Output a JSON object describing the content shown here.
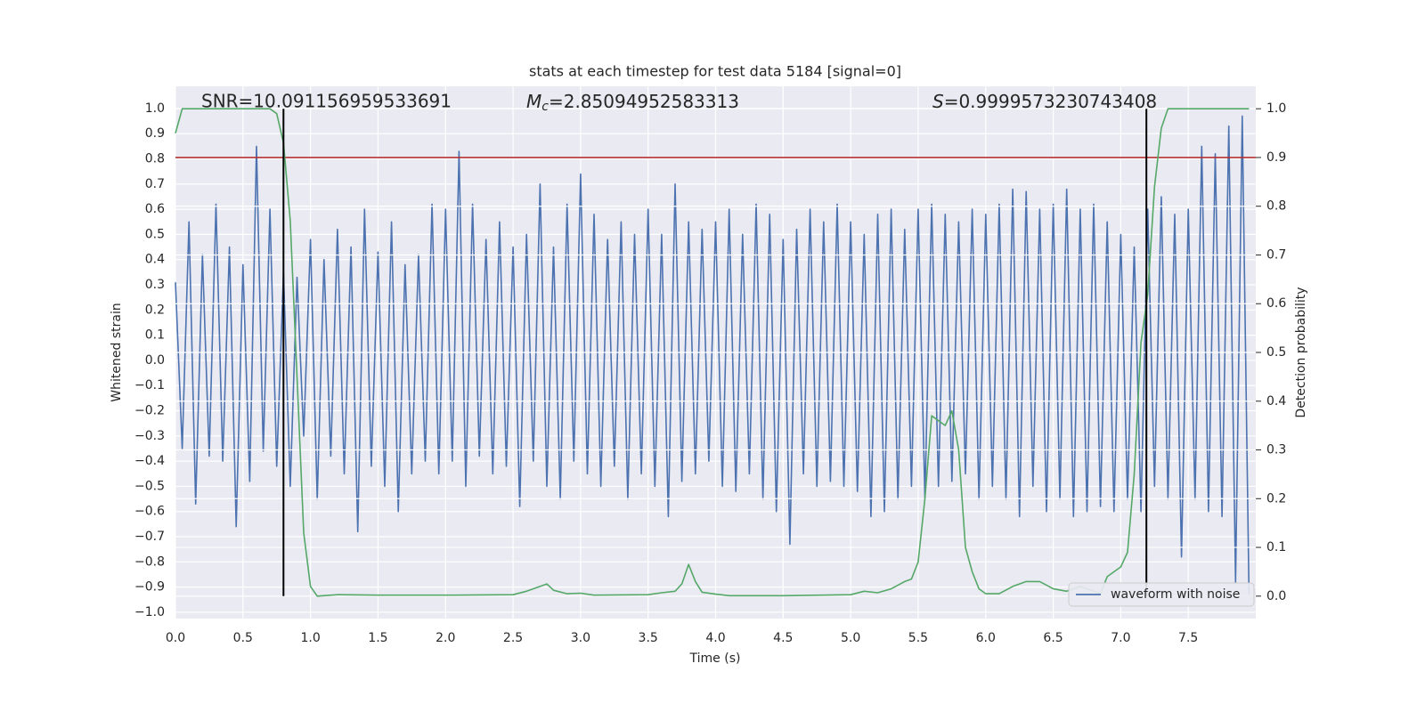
{
  "chart_data": {
    "type": "line",
    "title": "stats at each timestep for test data 5184 [signal=0]",
    "xlabel": "Time (s)",
    "ylabel": "Whitened strain",
    "y2label": "Detection probability",
    "annotations": {
      "snr": "SNR=10.091156959533691",
      "mc": {
        "symbol": "M",
        "subscript": "c",
        "text": "=2.85094952583313"
      },
      "s": {
        "symbol": "S",
        "text": "=0.9999573230743408"
      }
    },
    "xlim": [
      0,
      8.0
    ],
    "ylim": [
      -1.025,
      1.088
    ],
    "y2lim": [
      -0.046,
      1.046
    ],
    "xticks": [
      {
        "value": 0,
        "label": "0.0"
      },
      {
        "value": 0.5,
        "label": "0.5"
      },
      {
        "value": 1,
        "label": "1.0"
      },
      {
        "value": 1.5,
        "label": "1.5"
      },
      {
        "value": 2,
        "label": "2.0"
      },
      {
        "value": 2.5,
        "label": "2.5"
      },
      {
        "value": 3,
        "label": "3.0"
      },
      {
        "value": 3.5,
        "label": "3.5"
      },
      {
        "value": 4,
        "label": "4.0"
      },
      {
        "value": 4.5,
        "label": "4.5"
      },
      {
        "value": 5,
        "label": "5.0"
      },
      {
        "value": 5.5,
        "label": "5.5"
      },
      {
        "value": 6,
        "label": "6.0"
      },
      {
        "value": 6.5,
        "label": "6.5"
      },
      {
        "value": 7,
        "label": "7.0"
      },
      {
        "value": 7.5,
        "label": "7.5"
      }
    ],
    "yticks": [
      {
        "value": -1,
        "label": "−1.0"
      },
      {
        "value": -0.9,
        "label": "−0.9"
      },
      {
        "value": -0.8,
        "label": "−0.8"
      },
      {
        "value": -0.7,
        "label": "−0.7"
      },
      {
        "value": -0.6,
        "label": "−0.6"
      },
      {
        "value": -0.5,
        "label": "−0.5"
      },
      {
        "value": -0.4,
        "label": "−0.4"
      },
      {
        "value": -0.3,
        "label": "−0.3"
      },
      {
        "value": -0.2,
        "label": "−0.2"
      },
      {
        "value": -0.1,
        "label": "−0.1"
      },
      {
        "value": 0,
        "label": "0.0"
      },
      {
        "value": 0.1,
        "label": "0.1"
      },
      {
        "value": 0.2,
        "label": "0.2"
      },
      {
        "value": 0.3,
        "label": "0.3"
      },
      {
        "value": 0.4,
        "label": "0.4"
      },
      {
        "value": 0.5,
        "label": "0.5"
      },
      {
        "value": 0.6,
        "label": "0.6"
      },
      {
        "value": 0.7,
        "label": "0.7"
      },
      {
        "value": 0.8,
        "label": "0.8"
      },
      {
        "value": 0.9,
        "label": "0.9"
      },
      {
        "value": 1,
        "label": "1.0"
      }
    ],
    "y2ticks": [
      {
        "value": 0,
        "label": "0.0"
      },
      {
        "value": 0.1,
        "label": "0.1"
      },
      {
        "value": 0.2,
        "label": "0.2"
      },
      {
        "value": 0.3,
        "label": "0.3"
      },
      {
        "value": 0.4,
        "label": "0.4"
      },
      {
        "value": 0.5,
        "label": "0.5"
      },
      {
        "value": 0.6,
        "label": "0.6"
      },
      {
        "value": 0.7,
        "label": "0.7"
      },
      {
        "value": 0.8,
        "label": "0.8"
      },
      {
        "value": 0.9,
        "label": "0.9"
      },
      {
        "value": 1,
        "label": "1.0"
      }
    ],
    "grid": true,
    "legend": "lower right",
    "series": [
      {
        "name": "waveform with noise",
        "color": "#4c72b0",
        "x": [
          0,
          0.05,
          0.1,
          0.15,
          0.2,
          0.25,
          0.3,
          0.35,
          0.4,
          0.45,
          0.5,
          0.55,
          0.6,
          0.65,
          0.7,
          0.75,
          0.8,
          0.85,
          0.9,
          0.95,
          1,
          1.05,
          1.1,
          1.15,
          1.2,
          1.25,
          1.3,
          1.35,
          1.4,
          1.45,
          1.5,
          1.55,
          1.6,
          1.65,
          1.7,
          1.75,
          1.8,
          1.85,
          1.9,
          1.95,
          2,
          2.05,
          2.1,
          2.15,
          2.2,
          2.25,
          2.3,
          2.35,
          2.4,
          2.45,
          2.5,
          2.55,
          2.6,
          2.65,
          2.7,
          2.75,
          2.8,
          2.85,
          2.9,
          2.95,
          3,
          3.05,
          3.1,
          3.15,
          3.2,
          3.25,
          3.3,
          3.35,
          3.4,
          3.45,
          3.5,
          3.55,
          3.6,
          3.65,
          3.7,
          3.75,
          3.8,
          3.85,
          3.9,
          3.95,
          4,
          4.05,
          4.1,
          4.15,
          4.2,
          4.25,
          4.3,
          4.35,
          4.4,
          4.45,
          4.5,
          4.55,
          4.6,
          4.65,
          4.7,
          4.75,
          4.8,
          4.85,
          4.9,
          4.95,
          5,
          5.05,
          5.1,
          5.15,
          5.2,
          5.25,
          5.3,
          5.35,
          5.4,
          5.45,
          5.5,
          5.55,
          5.6,
          5.65,
          5.7,
          5.75,
          5.8,
          5.85,
          5.9,
          5.95,
          6,
          6.05,
          6.1,
          6.15,
          6.2,
          6.25,
          6.3,
          6.35,
          6.4,
          6.45,
          6.5,
          6.55,
          6.6,
          6.65,
          6.7,
          6.75,
          6.8,
          6.85,
          6.9,
          6.95,
          7,
          7.05,
          7.1,
          7.15,
          7.2,
          7.25,
          7.3,
          7.35,
          7.4,
          7.45,
          7.5,
          7.55,
          7.6,
          7.65,
          7.7,
          7.75,
          7.8,
          7.85,
          7.9,
          7.95
        ],
        "values": [
          0.31,
          -0.35,
          0.55,
          -0.57,
          0.42,
          -0.38,
          0.62,
          -0.4,
          0.45,
          -0.66,
          0.38,
          -0.48,
          0.85,
          -0.36,
          0.6,
          -0.42,
          0.35,
          -0.5,
          0.33,
          -0.3,
          0.48,
          -0.55,
          0.4,
          -0.38,
          0.52,
          -0.45,
          0.45,
          -0.68,
          0.6,
          -0.42,
          0.43,
          -0.5,
          0.55,
          -0.6,
          0.38,
          -0.45,
          0.42,
          -0.4,
          0.62,
          -0.45,
          0.6,
          -0.4,
          0.83,
          -0.5,
          0.62,
          -0.38,
          0.48,
          -0.45,
          0.55,
          -0.42,
          0.45,
          -0.58,
          0.5,
          -0.4,
          0.7,
          -0.5,
          0.45,
          -0.55,
          0.62,
          -0.4,
          0.74,
          -0.45,
          0.58,
          -0.5,
          0.48,
          -0.42,
          0.55,
          -0.55,
          0.5,
          -0.45,
          0.6,
          -0.5,
          0.5,
          -0.62,
          0.7,
          -0.48,
          0.55,
          -0.45,
          0.52,
          -0.4,
          0.55,
          -0.5,
          0.6,
          -0.52,
          0.5,
          -0.45,
          0.62,
          -0.55,
          0.58,
          -0.6,
          0.48,
          -0.73,
          0.52,
          -0.45,
          0.6,
          -0.5,
          0.55,
          -0.48,
          0.62,
          -0.5,
          0.55,
          -0.52,
          0.5,
          -0.62,
          0.58,
          -0.6,
          0.6,
          -0.55,
          0.52,
          -0.5,
          0.6,
          -0.55,
          0.62,
          -0.5,
          0.58,
          -0.48,
          0.55,
          -0.45,
          0.6,
          -0.55,
          0.58,
          -0.5,
          0.62,
          -0.55,
          0.68,
          -0.62,
          0.67,
          -0.5,
          0.6,
          -0.6,
          0.62,
          -0.55,
          0.68,
          -0.62,
          0.6,
          -0.6,
          0.62,
          -0.58,
          0.55,
          -0.6,
          0.5,
          -0.55,
          0.45,
          -0.6,
          0.6,
          -0.5,
          0.65,
          -0.55,
          0.58,
          -0.78,
          0.6,
          -0.55,
          0.85,
          -0.6,
          0.82,
          -0.62,
          0.93,
          -0.88,
          0.97,
          -0.93
        ]
      },
      {
        "color": "#55a868",
        "axis": "y2",
        "x": [
          0,
          0.05,
          0.1,
          0.2,
          0.3,
          0.4,
          0.5,
          0.6,
          0.7,
          0.75,
          0.8,
          0.85,
          0.9,
          0.95,
          1.0,
          1.05,
          1.2,
          1.5,
          2.0,
          2.5,
          2.6,
          2.7,
          2.75,
          2.8,
          2.9,
          3.0,
          3.1,
          3.5,
          3.6,
          3.7,
          3.75,
          3.8,
          3.85,
          3.9,
          4.0,
          4.1,
          4.5,
          5.0,
          5.1,
          5.2,
          5.3,
          5.4,
          5.45,
          5.5,
          5.55,
          5.6,
          5.65,
          5.7,
          5.75,
          5.8,
          5.85,
          5.9,
          5.95,
          6.0,
          6.1,
          6.2,
          6.3,
          6.4,
          6.5,
          6.6,
          6.7,
          6.8,
          6.85,
          6.9,
          7.0,
          7.05,
          7.1,
          7.15,
          7.2,
          7.25,
          7.3,
          7.35,
          7.5,
          7.95
        ],
        "values": [
          0.95,
          1.0,
          1.0,
          1.0,
          1.0,
          1.0,
          1.0,
          1.0,
          1.0,
          0.99,
          0.93,
          0.77,
          0.45,
          0.13,
          0.02,
          0.0,
          0.003,
          0.002,
          0.002,
          0.003,
          0.01,
          0.02,
          0.025,
          0.012,
          0.005,
          0.006,
          0.002,
          0.003,
          0.007,
          0.01,
          0.025,
          0.065,
          0.03,
          0.008,
          0.004,
          0.001,
          0.001,
          0.003,
          0.01,
          0.007,
          0.015,
          0.03,
          0.035,
          0.07,
          0.2,
          0.37,
          0.36,
          0.35,
          0.38,
          0.3,
          0.1,
          0.05,
          0.015,
          0.005,
          0.005,
          0.02,
          0.03,
          0.03,
          0.015,
          0.01,
          0.02,
          0.01,
          0.005,
          0.04,
          0.06,
          0.09,
          0.25,
          0.52,
          0.62,
          0.84,
          0.96,
          1.0,
          1.0,
          1.0
        ]
      }
    ],
    "hlines": [
      {
        "y": 0.9,
        "axis": "y2",
        "color": "#b22222"
      }
    ],
    "vlines": [
      {
        "x": 0.8,
        "ymin": 0,
        "ymax": 1,
        "axis": "y2",
        "color": "#000000"
      },
      {
        "x": 7.19,
        "ymin": 0,
        "ymax": 1,
        "axis": "y2",
        "color": "#000000"
      }
    ]
  }
}
